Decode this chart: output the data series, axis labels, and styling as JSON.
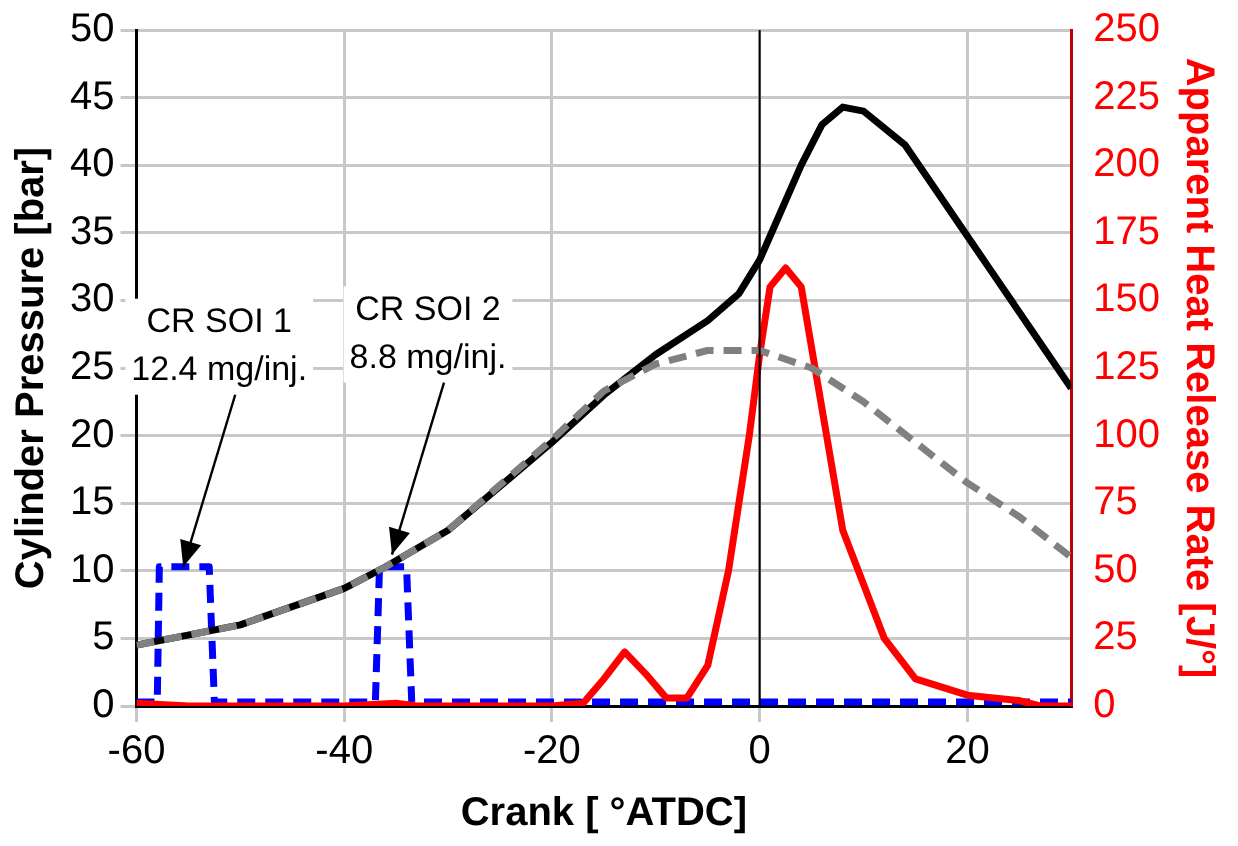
{
  "chart_data": {
    "type": "line",
    "xlabel": "Crank [ °ATDC]",
    "ylabel": "Cylinder Pressure [bar]",
    "y2label": "Apparent Heat Release Rate [J/°]",
    "xlim": [
      -60,
      30
    ],
    "xticks": [
      -60,
      -40,
      -20,
      0,
      20
    ],
    "ylim": [
      0,
      50
    ],
    "yticks": [
      0,
      5,
      10,
      15,
      20,
      25,
      30,
      35,
      40,
      45,
      50
    ],
    "y2lim": [
      0,
      250
    ],
    "y2ticks": [
      0,
      25,
      50,
      75,
      100,
      125,
      150,
      175,
      200,
      225,
      250
    ],
    "grid": true,
    "legend": false,
    "marker": "none",
    "ref_lines": [
      {
        "axis": "x",
        "value": 0,
        "color": "#000000"
      }
    ],
    "annotations": [
      {
        "text": "CR SOI 1\n12.4 mg/inj.",
        "x": -55.5,
        "y": 10.3
      },
      {
        "text": "CR SOI 2\n8.8 mg/inj.",
        "x": -35.4,
        "y": 11.2
      }
    ],
    "series": [
      {
        "color": "#808080",
        "line_style": "dashed",
        "x": [
          -60,
          -50,
          -40,
          -36,
          -30,
          -20,
          -15,
          -10,
          -5,
          0,
          5,
          10,
          15,
          20,
          25,
          30
        ],
        "values": [
          4.5,
          6,
          8.7,
          10.3,
          13,
          19.7,
          23.3,
          25.3,
          26.3,
          26.3,
          25,
          22.5,
          19.5,
          16.5,
          14,
          11
        ]
      },
      {
        "color": "#000000",
        "line_style": "solid",
        "x": [
          -60,
          -50,
          -40,
          -36,
          -30,
          -20,
          -15,
          -10,
          -5,
          -2,
          0,
          2,
          4,
          6,
          8,
          10,
          14,
          18,
          22,
          26,
          30
        ],
        "values": [
          4.5,
          6,
          8.7,
          10.3,
          13,
          19.5,
          23,
          26,
          28.5,
          30.5,
          33,
          36.5,
          40,
          43,
          44.3,
          44,
          41.5,
          37,
          32.5,
          28,
          23.5
        ]
      },
      {
        "color": "#ff0000",
        "line_style": "solid",
        "axis": "y2",
        "x": [
          -60,
          -55,
          -50,
          -45,
          -40,
          -35,
          -33,
          -30,
          -20,
          -17,
          -15,
          -13,
          -11,
          -9,
          -7,
          -5,
          -3,
          -1,
          0,
          1,
          2.5,
          4,
          6,
          8,
          10,
          12,
          15,
          20,
          25,
          27,
          28,
          30
        ],
        "values": [
          1,
          0,
          0,
          0,
          0,
          1,
          0,
          0,
          0,
          1,
          10,
          20,
          12,
          3,
          3,
          15,
          50,
          100,
          130,
          155,
          162,
          155,
          110,
          65,
          45,
          25,
          10,
          4,
          2,
          0,
          0,
          0
        ]
      },
      {
        "color": "#0000ff",
        "line_style": "dashed",
        "x": [
          -60,
          -58,
          -57.8,
          -53,
          -52.5,
          -37,
          -36.6,
          -34,
          -33.5,
          30
        ],
        "values": [
          0.3,
          0.3,
          10.3,
          10.3,
          0.3,
          0.3,
          10.3,
          10.3,
          0.3,
          0.3
        ]
      }
    ]
  }
}
